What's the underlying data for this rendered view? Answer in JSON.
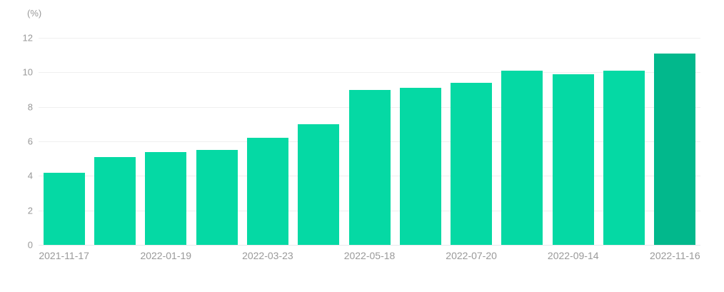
{
  "chart_data": {
    "type": "bar",
    "ylabel": "(%)",
    "ylim": [
      0,
      12
    ],
    "y_ticks": [
      0,
      2,
      4,
      6,
      8,
      10,
      12
    ],
    "values": [
      4.2,
      5.1,
      5.4,
      5.5,
      6.2,
      7.0,
      9.0,
      9.1,
      9.4,
      10.1,
      9.9,
      10.1,
      11.1
    ],
    "bar_count": 13,
    "x_tick_labels": [
      "2021-11-17",
      "2022-01-19",
      "2022-03-23",
      "2022-05-18",
      "2022-07-20",
      "2022-09-14",
      "2022-11-16"
    ],
    "x_tick_bar_indices": [
      0,
      2,
      4,
      6,
      8,
      10,
      12
    ],
    "highlight_index": 12,
    "grid": "horizontal",
    "legend_position": "none",
    "colors": {
      "bar": "#05d9a4",
      "bar_highlight": "#02b88c",
      "gridline": "#efefef",
      "axis_line": "#e8eaed",
      "tick_label": "#999999"
    }
  }
}
